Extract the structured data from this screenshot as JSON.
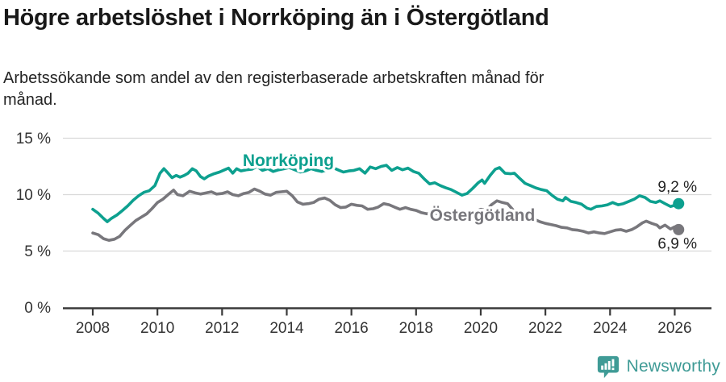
{
  "header": {
    "title": "Högre arbetslöshet i Norrköping än i Östergötland",
    "subtitle": "Arbetssökande som andel av den registerbaserade arbetskraften månad för\nmånad."
  },
  "footer": {
    "brand": "Newsworthy",
    "brand_color": "#3f9b96"
  },
  "chart_data": {
    "type": "line",
    "title": "Högre arbetslöshet i Norrköping än i Östergötland",
    "unit": "%",
    "grid": true,
    "x_axis": {
      "ticks": [
        {
          "value": 2008,
          "label": "2008"
        },
        {
          "value": 2010,
          "label": "2010"
        },
        {
          "value": 2012,
          "label": "2012"
        },
        {
          "value": 2014,
          "label": "2014"
        },
        {
          "value": 2016,
          "label": "2016"
        },
        {
          "value": 2018,
          "label": "2018"
        },
        {
          "value": 2020,
          "label": "2020"
        },
        {
          "value": 2022,
          "label": "2022"
        },
        {
          "value": 2024,
          "label": "2024"
        },
        {
          "value": 2026,
          "label": "2026"
        }
      ],
      "range": [
        2007.1,
        2027.1
      ]
    },
    "y_axis": {
      "ticks": [
        {
          "value": 15,
          "label": "15 %"
        },
        {
          "value": 10,
          "label": "10 %"
        },
        {
          "value": 5,
          "label": "5 %"
        },
        {
          "value": 0,
          "label": "0 %"
        }
      ],
      "range": [
        0,
        15.8
      ]
    },
    "series": [
      {
        "name": "Norrköping",
        "color": "#0da08f",
        "end_label": "9,2 %",
        "end_value": 9.2,
        "label_anchor": {
          "x": 2014.05,
          "y": 12.54
        },
        "points": [
          [
            2008.0,
            8.7
          ],
          [
            2008.17,
            8.35
          ],
          [
            2008.33,
            7.9
          ],
          [
            2008.45,
            7.6
          ],
          [
            2008.58,
            7.9
          ],
          [
            2008.75,
            8.2
          ],
          [
            2008.92,
            8.6
          ],
          [
            2009.08,
            9.0
          ],
          [
            2009.25,
            9.5
          ],
          [
            2009.42,
            9.9
          ],
          [
            2009.58,
            10.2
          ],
          [
            2009.75,
            10.35
          ],
          [
            2009.92,
            10.8
          ],
          [
            2010.08,
            11.9
          ],
          [
            2010.2,
            12.3
          ],
          [
            2010.33,
            11.9
          ],
          [
            2010.45,
            11.5
          ],
          [
            2010.58,
            11.7
          ],
          [
            2010.7,
            11.55
          ],
          [
            2010.83,
            11.7
          ],
          [
            2010.95,
            11.9
          ],
          [
            2011.08,
            12.3
          ],
          [
            2011.2,
            12.1
          ],
          [
            2011.33,
            11.6
          ],
          [
            2011.45,
            11.4
          ],
          [
            2011.58,
            11.65
          ],
          [
            2011.75,
            11.85
          ],
          [
            2011.92,
            12.0
          ],
          [
            2012.08,
            12.2
          ],
          [
            2012.2,
            12.35
          ],
          [
            2012.33,
            11.9
          ],
          [
            2012.45,
            12.3
          ],
          [
            2012.58,
            12.1
          ],
          [
            2012.75,
            12.2
          ],
          [
            2012.92,
            12.25
          ],
          [
            2013.08,
            12.5
          ],
          [
            2013.25,
            12.15
          ],
          [
            2013.42,
            12.3
          ],
          [
            2013.58,
            12.05
          ],
          [
            2013.75,
            12.2
          ],
          [
            2013.92,
            12.3
          ],
          [
            2014.08,
            12.4
          ],
          [
            2014.25,
            12.2
          ],
          [
            2014.42,
            12.0
          ],
          [
            2014.58,
            12.1
          ],
          [
            2014.75,
            12.3
          ],
          [
            2014.92,
            12.15
          ],
          [
            2015.08,
            12.05
          ],
          [
            2015.25,
            12.2
          ],
          [
            2015.42,
            12.4
          ],
          [
            2015.58,
            12.2
          ],
          [
            2015.75,
            12.0
          ],
          [
            2015.92,
            12.1
          ],
          [
            2016.08,
            12.15
          ],
          [
            2016.25,
            12.3
          ],
          [
            2016.42,
            11.9
          ],
          [
            2016.58,
            12.45
          ],
          [
            2016.75,
            12.3
          ],
          [
            2016.92,
            12.5
          ],
          [
            2017.08,
            12.6
          ],
          [
            2017.25,
            12.15
          ],
          [
            2017.42,
            12.4
          ],
          [
            2017.58,
            12.2
          ],
          [
            2017.75,
            12.35
          ],
          [
            2017.92,
            12.05
          ],
          [
            2018.08,
            11.9
          ],
          [
            2018.25,
            11.4
          ],
          [
            2018.42,
            10.95
          ],
          [
            2018.58,
            11.05
          ],
          [
            2018.75,
            10.8
          ],
          [
            2018.92,
            10.6
          ],
          [
            2019.08,
            10.45
          ],
          [
            2019.25,
            10.2
          ],
          [
            2019.42,
            9.95
          ],
          [
            2019.58,
            10.1
          ],
          [
            2019.75,
            10.55
          ],
          [
            2019.92,
            11.05
          ],
          [
            2020.04,
            11.3
          ],
          [
            2020.12,
            11.0
          ],
          [
            2020.29,
            11.7
          ],
          [
            2020.45,
            12.25
          ],
          [
            2020.58,
            12.4
          ],
          [
            2020.75,
            11.9
          ],
          [
            2020.92,
            11.85
          ],
          [
            2021.04,
            11.9
          ],
          [
            2021.2,
            11.45
          ],
          [
            2021.37,
            11.0
          ],
          [
            2021.54,
            10.8
          ],
          [
            2021.7,
            10.6
          ],
          [
            2021.87,
            10.45
          ],
          [
            2022.04,
            10.35
          ],
          [
            2022.2,
            9.95
          ],
          [
            2022.37,
            9.6
          ],
          [
            2022.54,
            9.45
          ],
          [
            2022.62,
            9.75
          ],
          [
            2022.79,
            9.4
          ],
          [
            2022.95,
            9.3
          ],
          [
            2023.12,
            9.15
          ],
          [
            2023.29,
            8.8
          ],
          [
            2023.41,
            8.7
          ],
          [
            2023.58,
            8.95
          ],
          [
            2023.75,
            9.0
          ],
          [
            2023.92,
            9.1
          ],
          [
            2024.08,
            9.3
          ],
          [
            2024.25,
            9.1
          ],
          [
            2024.41,
            9.2
          ],
          [
            2024.58,
            9.4
          ],
          [
            2024.75,
            9.6
          ],
          [
            2024.91,
            9.9
          ],
          [
            2025.08,
            9.75
          ],
          [
            2025.25,
            9.4
          ],
          [
            2025.41,
            9.3
          ],
          [
            2025.54,
            9.45
          ],
          [
            2025.7,
            9.2
          ],
          [
            2025.87,
            8.95
          ],
          [
            2026.0,
            9.05
          ],
          [
            2026.12,
            9.2
          ]
        ]
      },
      {
        "name": "Östergötland",
        "color": "#78777c",
        "end_label": "6,9 %",
        "end_value": 6.9,
        "label_anchor": {
          "x": 2020.05,
          "y": 7.68
        },
        "points": [
          [
            2008.0,
            6.6
          ],
          [
            2008.17,
            6.45
          ],
          [
            2008.33,
            6.1
          ],
          [
            2008.5,
            5.95
          ],
          [
            2008.67,
            6.05
          ],
          [
            2008.83,
            6.3
          ],
          [
            2009.0,
            6.85
          ],
          [
            2009.17,
            7.3
          ],
          [
            2009.33,
            7.7
          ],
          [
            2009.5,
            8.0
          ],
          [
            2009.67,
            8.3
          ],
          [
            2009.83,
            8.75
          ],
          [
            2010.0,
            9.3
          ],
          [
            2010.17,
            9.6
          ],
          [
            2010.33,
            10.0
          ],
          [
            2010.5,
            10.4
          ],
          [
            2010.62,
            10.0
          ],
          [
            2010.79,
            9.9
          ],
          [
            2011.0,
            10.3
          ],
          [
            2011.17,
            10.15
          ],
          [
            2011.33,
            10.05
          ],
          [
            2011.5,
            10.15
          ],
          [
            2011.67,
            10.25
          ],
          [
            2011.83,
            10.05
          ],
          [
            2012.0,
            10.1
          ],
          [
            2012.17,
            10.25
          ],
          [
            2012.33,
            10.0
          ],
          [
            2012.5,
            9.9
          ],
          [
            2012.67,
            10.1
          ],
          [
            2012.83,
            10.2
          ],
          [
            2013.0,
            10.5
          ],
          [
            2013.17,
            10.3
          ],
          [
            2013.33,
            10.05
          ],
          [
            2013.5,
            9.95
          ],
          [
            2013.67,
            10.2
          ],
          [
            2013.83,
            10.25
          ],
          [
            2014.0,
            10.3
          ],
          [
            2014.17,
            9.9
          ],
          [
            2014.33,
            9.35
          ],
          [
            2014.5,
            9.15
          ],
          [
            2014.67,
            9.2
          ],
          [
            2014.83,
            9.3
          ],
          [
            2015.0,
            9.6
          ],
          [
            2015.17,
            9.7
          ],
          [
            2015.33,
            9.5
          ],
          [
            2015.5,
            9.1
          ],
          [
            2015.67,
            8.85
          ],
          [
            2015.83,
            8.9
          ],
          [
            2016.0,
            9.15
          ],
          [
            2016.17,
            9.05
          ],
          [
            2016.33,
            9.0
          ],
          [
            2016.5,
            8.7
          ],
          [
            2016.67,
            8.75
          ],
          [
            2016.83,
            8.9
          ],
          [
            2017.0,
            9.2
          ],
          [
            2017.17,
            9.1
          ],
          [
            2017.33,
            8.9
          ],
          [
            2017.5,
            8.7
          ],
          [
            2017.67,
            8.85
          ],
          [
            2017.83,
            8.7
          ],
          [
            2018.0,
            8.6
          ],
          [
            2018.17,
            8.4
          ],
          [
            2018.33,
            8.3
          ],
          [
            2018.5,
            8.4
          ],
          [
            2018.67,
            8.3
          ],
          [
            2018.83,
            8.4
          ],
          [
            2019.0,
            8.25
          ],
          [
            2019.17,
            8.1
          ],
          [
            2019.33,
            7.95
          ],
          [
            2019.5,
            8.05
          ],
          [
            2019.67,
            8.2
          ],
          [
            2019.83,
            8.5
          ],
          [
            2020.0,
            8.7
          ],
          [
            2020.17,
            8.6
          ],
          [
            2020.33,
            9.1
          ],
          [
            2020.5,
            9.45
          ],
          [
            2020.67,
            9.3
          ],
          [
            2020.83,
            9.2
          ],
          [
            2021.0,
            8.65
          ],
          [
            2021.17,
            8.4
          ],
          [
            2021.33,
            8.1
          ],
          [
            2021.5,
            7.95
          ],
          [
            2021.67,
            7.8
          ],
          [
            2021.83,
            7.6
          ],
          [
            2022.0,
            7.45
          ],
          [
            2022.17,
            7.35
          ],
          [
            2022.33,
            7.25
          ],
          [
            2022.5,
            7.1
          ],
          [
            2022.67,
            7.05
          ],
          [
            2022.83,
            6.9
          ],
          [
            2023.0,
            6.85
          ],
          [
            2023.17,
            6.75
          ],
          [
            2023.33,
            6.6
          ],
          [
            2023.5,
            6.7
          ],
          [
            2023.67,
            6.6
          ],
          [
            2023.83,
            6.55
          ],
          [
            2024.0,
            6.7
          ],
          [
            2024.17,
            6.85
          ],
          [
            2024.33,
            6.9
          ],
          [
            2024.5,
            6.75
          ],
          [
            2024.67,
            6.9
          ],
          [
            2024.83,
            7.15
          ],
          [
            2025.0,
            7.5
          ],
          [
            2025.12,
            7.65
          ],
          [
            2025.29,
            7.45
          ],
          [
            2025.45,
            7.3
          ],
          [
            2025.54,
            7.05
          ],
          [
            2025.7,
            7.3
          ],
          [
            2025.87,
            6.95
          ],
          [
            2026.0,
            7.15
          ],
          [
            2026.12,
            6.9
          ]
        ]
      }
    ],
    "legend_position": "inline-labels"
  }
}
